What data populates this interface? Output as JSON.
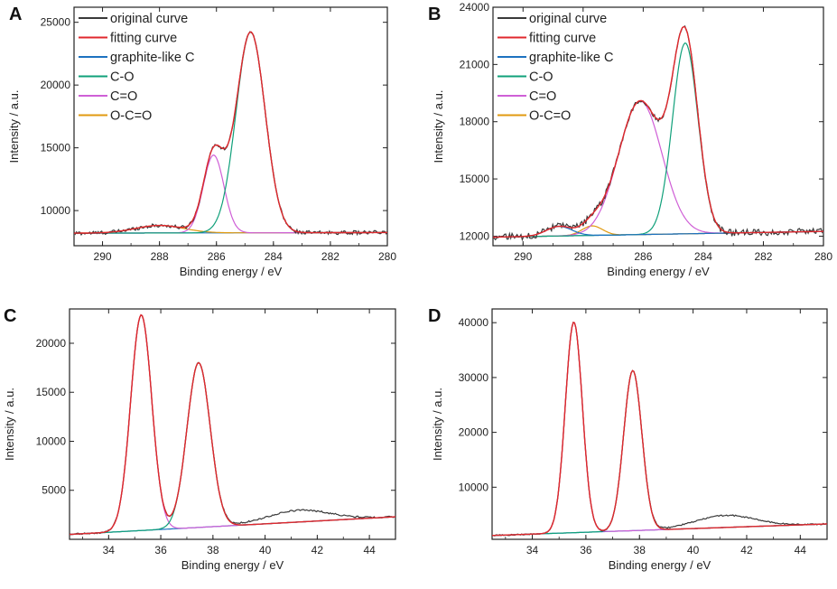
{
  "figure": {
    "description_only": false
  },
  "colors": {
    "original": "#3a3a3a",
    "fit": "#e0282d",
    "graphite": "#1d72c0",
    "co": "#10a07a",
    "c_eq_o": "#cf5fd6",
    "o_c_o": "#e09a10"
  },
  "chart_data": [
    {
      "panel": "A",
      "type": "line",
      "xlabel": "Binding energy / eV",
      "ylabel": "Intensity / a.u.",
      "xlim": [
        291,
        280
      ],
      "ylim": [
        7200,
        26200
      ],
      "xticks": [
        290,
        288,
        286,
        284,
        282,
        280
      ],
      "xtick_labels": [
        "290",
        "288",
        "286",
        "284",
        "282",
        "280"
      ],
      "yticks": [
        10000,
        15000,
        20000,
        25000
      ],
      "ytick_labels": [
        "10000",
        "15000",
        "20000",
        "25000"
      ],
      "legend": [
        "original curve",
        "fitting curve",
        "graphite-like C",
        "C-O",
        "C=O",
        "O-C=O"
      ],
      "baseline": [
        [
          291,
          8200
        ],
        [
          280,
          8250
        ]
      ],
      "peaks": {
        "co": {
          "center": 284.8,
          "height": 16000,
          "fwhm": 1.2
        },
        "c_eq_o": {
          "center": 286.1,
          "height": 6200,
          "fwhm": 0.85
        },
        "o_c_o": {
          "center": 288.0,
          "height": 600,
          "fwhm": 2.0
        }
      },
      "noise": 150
    },
    {
      "panel": "B",
      "type": "line",
      "xlabel": "Binding energy / eV",
      "ylabel": "Intensity / a.u.",
      "xlim": [
        291,
        280
      ],
      "ylim": [
        11500,
        24000
      ],
      "xticks": [
        290,
        288,
        286,
        284,
        282,
        280
      ],
      "xtick_labels": [
        "290",
        "288",
        "286",
        "284",
        "282",
        "280"
      ],
      "yticks": [
        12000,
        15000,
        18000,
        21000,
        24000
      ],
      "ytick_labels": [
        "12000",
        "15000",
        "18000",
        "21000",
        "24000"
      ],
      "legend": [
        "original curve",
        "fitting curve",
        "graphite-like C",
        "C-O",
        "C=O",
        "O-C=O"
      ],
      "baseline": [
        [
          291,
          11950
        ],
        [
          280,
          12250
        ]
      ],
      "peaks": {
        "co": {
          "center": 284.6,
          "height": 10000,
          "fwhm": 1.0
        },
        "c_eq_o": {
          "center": 286.1,
          "height": 7000,
          "fwhm": 1.7
        },
        "o_c_o": {
          "center": 287.7,
          "height": 500,
          "fwhm": 0.8
        },
        "graphite": {
          "center": 288.8,
          "height": 500,
          "fwhm": 1.0
        }
      },
      "noise": 180
    },
    {
      "panel": "C",
      "type": "line",
      "xlabel": "Binding energy / eV",
      "ylabel": "Intensity / a.u.",
      "xlim": [
        32.5,
        45
      ],
      "ylim": [
        0,
        23500
      ],
      "xticks": [
        34,
        36,
        38,
        40,
        42,
        44
      ],
      "xtick_labels": [
        "34",
        "36",
        "38",
        "40",
        "42",
        "44"
      ],
      "yticks": [
        5000,
        10000,
        15000,
        20000
      ],
      "ytick_labels": [
        "5000",
        "10000",
        "15000",
        "20000"
      ],
      "baseline": [
        [
          32.5,
          500
        ],
        [
          45,
          2300
        ]
      ],
      "peaks": {
        "c_eq_o": {
          "center": 35.25,
          "height": 22000,
          "fwhm": 0.95
        },
        "co": {
          "center": 37.45,
          "height": 16800,
          "fwhm": 1.05
        }
      },
      "extra_hump": {
        "center": 41.3,
        "height": 1200,
        "fwhm": 2.8
      },
      "noise": 80
    },
    {
      "panel": "D",
      "type": "line",
      "xlabel": "Binding energy / eV",
      "ylabel": "Intensity / a.u.",
      "xlim": [
        32.5,
        45
      ],
      "ylim": [
        500,
        42500
      ],
      "xticks": [
        34,
        36,
        38,
        40,
        42,
        44
      ],
      "xtick_labels": [
        "34",
        "36",
        "38",
        "40",
        "42",
        "44"
      ],
      "yticks": [
        10000,
        20000,
        30000,
        40000
      ],
      "ytick_labels": [
        "10000",
        "20000",
        "30000",
        "40000"
      ],
      "baseline": [
        [
          32.5,
          1200
        ],
        [
          45,
          3300
        ]
      ],
      "peaks": {
        "c_eq_o": {
          "center": 35.55,
          "height": 38400,
          "fwhm": 0.75
        },
        "co": {
          "center": 37.75,
          "height": 29200,
          "fwhm": 0.8
        }
      },
      "extra_hump": {
        "center": 41.2,
        "height": 2200,
        "fwhm": 2.6
      },
      "noise": 120
    }
  ]
}
